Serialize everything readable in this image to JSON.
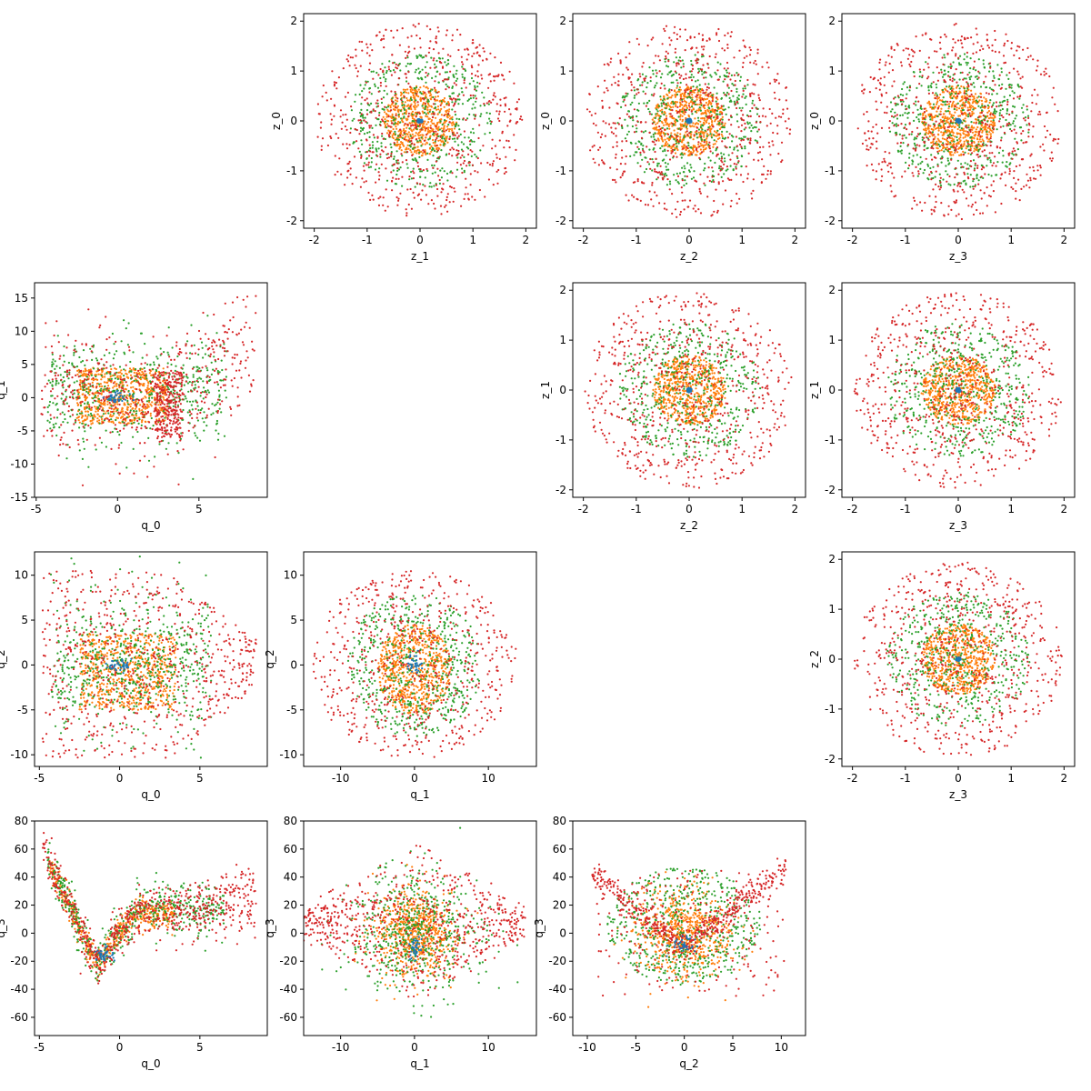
{
  "colors": [
    "#1f77b4",
    "#ff7f0e",
    "#2ca02c",
    "#d62728"
  ],
  "chart_data": [
    {
      "type": "scatter",
      "id": "z0_vs_z1",
      "xlabel": "z_1",
      "ylabel": "z_0",
      "xlim": [
        -2.2,
        2.2
      ],
      "ylim": [
        -2.15,
        2.15
      ],
      "xticks": [
        -2,
        -1,
        0,
        1,
        2
      ],
      "yticks": [
        -2,
        -1,
        0,
        1,
        2
      ],
      "shape": "rings",
      "rings": [
        0.05,
        0.7,
        1.35,
        1.97
      ],
      "counts": [
        40,
        600,
        500,
        650
      ]
    },
    {
      "type": "scatter",
      "id": "z0_vs_z2",
      "xlabel": "z_2",
      "ylabel": "z_0",
      "xlim": [
        -2.2,
        2.2
      ],
      "ylim": [
        -2.15,
        2.15
      ],
      "xticks": [
        -2,
        -1,
        0,
        1,
        2
      ],
      "yticks": [
        -2,
        -1,
        0,
        1,
        2
      ],
      "shape": "rings",
      "rings": [
        0.05,
        0.7,
        1.35,
        1.97
      ],
      "counts": [
        40,
        600,
        500,
        650
      ]
    },
    {
      "type": "scatter",
      "id": "z0_vs_z3",
      "xlabel": "z_3",
      "ylabel": "z_0",
      "xlim": [
        -2.2,
        2.2
      ],
      "ylim": [
        -2.15,
        2.15
      ],
      "xticks": [
        -2,
        -1,
        0,
        1,
        2
      ],
      "yticks": [
        -2,
        -1,
        0,
        1,
        2
      ],
      "shape": "rings",
      "rings": [
        0.05,
        0.7,
        1.35,
        1.97
      ],
      "counts": [
        40,
        600,
        500,
        650
      ]
    },
    {
      "type": "scatter",
      "id": "q1_vs_q0",
      "xlabel": "q_0",
      "ylabel": "q_1",
      "xlim": [
        -5.1,
        9.2
      ],
      "ylim": [
        -15,
        17.3
      ],
      "xticks": [
        -5,
        0,
        5
      ],
      "yticks": [
        -15,
        -10,
        -5,
        0,
        5,
        10,
        15
      ],
      "shape": "q1q0"
    },
    {
      "type": "scatter",
      "id": "z1_vs_z2",
      "xlabel": "z_2",
      "ylabel": "z_1",
      "xlim": [
        -2.2,
        2.2
      ],
      "ylim": [
        -2.15,
        2.15
      ],
      "xticks": [
        -2,
        -1,
        0,
        1,
        2
      ],
      "yticks": [
        -2,
        -1,
        0,
        1,
        2
      ],
      "shape": "rings",
      "rings": [
        0.05,
        0.7,
        1.35,
        1.97
      ],
      "counts": [
        40,
        600,
        500,
        650
      ]
    },
    {
      "type": "scatter",
      "id": "z1_vs_z3",
      "xlabel": "z_3",
      "ylabel": "z_1",
      "xlim": [
        -2.2,
        2.2
      ],
      "ylim": [
        -2.15,
        2.15
      ],
      "xticks": [
        -2,
        -1,
        0,
        1,
        2
      ],
      "yticks": [
        -2,
        -1,
        0,
        1,
        2
      ],
      "shape": "rings",
      "rings": [
        0.05,
        0.7,
        1.35,
        1.97
      ],
      "counts": [
        40,
        600,
        500,
        650
      ]
    },
    {
      "type": "scatter",
      "id": "q2_vs_q0",
      "xlabel": "q_0",
      "ylabel": "q_2",
      "xlim": [
        -5.3,
        9.2
      ],
      "ylim": [
        -11.3,
        12.6
      ],
      "xticks": [
        -5,
        0,
        5
      ],
      "yticks": [
        -10,
        -5,
        0,
        5,
        10
      ],
      "shape": "q2q0"
    },
    {
      "type": "scatter",
      "id": "q2_vs_q1",
      "xlabel": "q_1",
      "ylabel": "q_2",
      "xlim": [
        -15,
        16.5
      ],
      "ylim": [
        -11.3,
        12.6
      ],
      "xticks": [
        -10,
        0,
        10
      ],
      "yticks": [
        -10,
        -5,
        0,
        5,
        10
      ],
      "shape": "q2q1"
    },
    {
      "type": "scatter",
      "id": "z2_vs_z3",
      "xlabel": "z_3",
      "ylabel": "z_2",
      "xlim": [
        -2.2,
        2.2
      ],
      "ylim": [
        -2.15,
        2.15
      ],
      "xticks": [
        -2,
        -1,
        0,
        1,
        2
      ],
      "yticks": [
        -2,
        -1,
        0,
        1,
        2
      ],
      "shape": "rings",
      "rings": [
        0.05,
        0.7,
        1.35,
        1.97
      ],
      "counts": [
        40,
        600,
        500,
        650
      ]
    },
    {
      "type": "scatter",
      "id": "q3_vs_q0",
      "xlabel": "q_0",
      "ylabel": "q_3",
      "xlim": [
        -5.3,
        9.2
      ],
      "ylim": [
        -73,
        80
      ],
      "xticks": [
        -5,
        0,
        5
      ],
      "yticks": [
        -60,
        -40,
        -20,
        0,
        20,
        40,
        60,
        80
      ],
      "shape": "q3q0"
    },
    {
      "type": "scatter",
      "id": "q3_vs_q1",
      "xlabel": "q_1",
      "ylabel": "q_3",
      "xlim": [
        -15,
        16.5
      ],
      "ylim": [
        -73,
        80
      ],
      "xticks": [
        -10,
        0,
        10
      ],
      "yticks": [
        -60,
        -40,
        -20,
        0,
        20,
        40,
        60,
        80
      ],
      "shape": "q3q1"
    },
    {
      "type": "scatter",
      "id": "q3_vs_q2",
      "xlabel": "q_2",
      "ylabel": "q_3",
      "xlim": [
        -11.5,
        12.5
      ],
      "ylim": [
        -73,
        80
      ],
      "xticks": [
        -10,
        -5,
        0,
        5,
        10
      ],
      "yticks": [
        -60,
        -40,
        -20,
        0,
        20,
        40,
        60,
        80
      ],
      "shape": "q3q2"
    }
  ]
}
